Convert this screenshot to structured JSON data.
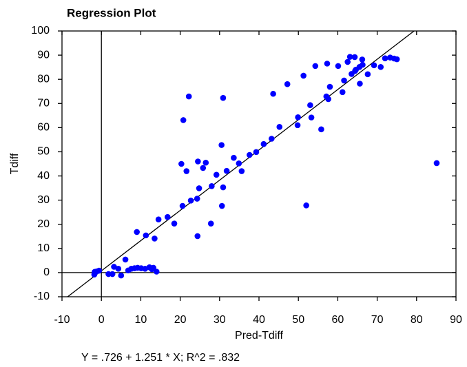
{
  "chart_data": {
    "type": "scatter",
    "title": "Regression Plot",
    "x_label": "Pred-Tdiff",
    "y_label": "Tdiff",
    "annotation": "Y = .726 + 1.251 * X; R^2 = .832",
    "fit_line": {
      "intercept": 0.726,
      "slope": 1.251
    },
    "color": "#0000ff",
    "xlim": [
      -10,
      90
    ],
    "ylim": [
      -10,
      100
    ],
    "xticks": [
      -10,
      0,
      10,
      20,
      30,
      40,
      50,
      60,
      70,
      80,
      90
    ],
    "yticks": [
      -10,
      0,
      10,
      20,
      30,
      40,
      50,
      60,
      70,
      80,
      90,
      100
    ],
    "grid": false,
    "x": [
      -1.8,
      -1.7,
      -1.2,
      -0.6,
      1.8,
      2.8,
      3.2,
      4.3,
      5.0,
      6.1,
      6.8,
      7.6,
      8.4,
      9.0,
      9.2,
      10.1,
      11.1,
      11.3,
      12.2,
      12.8,
      13.2,
      13.5,
      14.0,
      14.5,
      16.8,
      18.5,
      20.3,
      20.6,
      20.8,
      21.6,
      22.2,
      22.7,
      24.3,
      24.4,
      24.5,
      24.8,
      25.8,
      26.5,
      27.8,
      28.0,
      29.2,
      30.5,
      30.6,
      30.9,
      30.9,
      31.8,
      33.6,
      34.9,
      35.6,
      37.6,
      39.3,
      41.2,
      43.2,
      43.6,
      45.2,
      47.2,
      49.8,
      49.9,
      51.3,
      52.0,
      53.0,
      53.3,
      54.3,
      55.8,
      57.1,
      57.3,
      57.6,
      58.0,
      60.1,
      61.2,
      61.6,
      62.5,
      63.1,
      63.5,
      64.3,
      64.4,
      64.6,
      65.5,
      65.6,
      66.2,
      66.3,
      67.6,
      69.2,
      70.9,
      72.0,
      73.3,
      74.3,
      75.0,
      85.1
    ],
    "y": [
      -0.8,
      0.3,
      0.5,
      0.8,
      -0.6,
      -0.6,
      2.4,
      1.6,
      -1.2,
      5.4,
      0.9,
      1.6,
      1.8,
      16.8,
      2.0,
      1.8,
      1.6,
      15.4,
      2.2,
      1.4,
      2.0,
      14.1,
      0.4,
      22.0,
      23.0,
      20.3,
      45.0,
      27.6,
      63.1,
      42.0,
      72.9,
      29.8,
      30.6,
      15.1,
      46.0,
      34.9,
      43.3,
      45.5,
      20.3,
      35.8,
      40.5,
      52.8,
      27.6,
      72.3,
      35.3,
      42.1,
      47.5,
      45.2,
      42.0,
      48.7,
      49.9,
      53.2,
      55.4,
      74.0,
      60.3,
      78.0,
      61.0,
      64.3,
      81.5,
      27.8,
      69.3,
      64.2,
      85.5,
      59.3,
      72.9,
      86.5,
      71.8,
      76.9,
      85.5,
      74.7,
      79.5,
      87.2,
      89.3,
      82.2,
      89.2,
      83.5,
      84.0,
      85.1,
      78.2,
      88.2,
      86.0,
      82.1,
      85.8,
      85.1,
      88.7,
      89.0,
      88.6,
      88.3,
      45.3
    ]
  }
}
